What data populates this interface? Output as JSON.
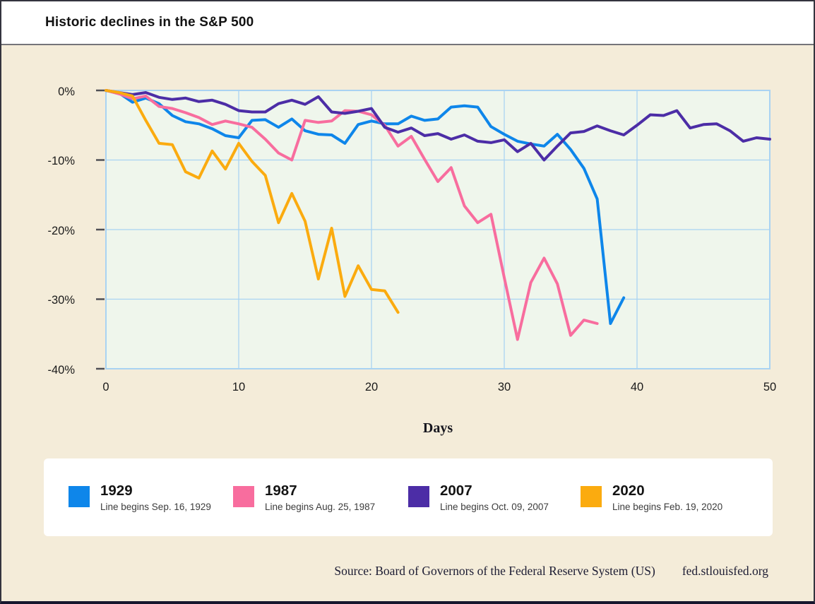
{
  "header": {
    "title": "Historic declines in the S&P 500"
  },
  "footer": {
    "source": "Source: Board of Governors of the Federal Reserve System (US)",
    "site": "fed.stlouisfed.org"
  },
  "colors": {
    "page_bg": "#f4ecd9",
    "plot_bg": "#eff6ec",
    "grid": "#a9d3f2",
    "tick": "#4f4f55",
    "blue_1929": "#0e86ea",
    "pink_1987": "#f86d9e",
    "purple_2007": "#4c2da6",
    "orange_2020": "#fbab0f"
  },
  "chart_data": {
    "type": "line",
    "title": "Historic declines in the S&P 500",
    "xlabel": "Days",
    "ylabel": "",
    "xlim": [
      0,
      50
    ],
    "ylim": [
      -40,
      0
    ],
    "grid": true,
    "legend_position": "bottom",
    "x_ticks": [
      "0",
      "10",
      "20",
      "30",
      "40",
      "50"
    ],
    "y_ticks": [
      "0%",
      "-10%",
      "-20%",
      "-30%",
      "-40%"
    ],
    "x_unit_days": true,
    "series": [
      {
        "name": "1929",
        "subtitle": "Line begins Sep. 16, 1929",
        "color": "#0e86ea",
        "values": [
          0,
          -0.4,
          -1.7,
          -1.1,
          -1.9,
          -3.6,
          -4.5,
          -4.8,
          -5.5,
          -6.5,
          -6.8,
          -4.3,
          -4.2,
          -5.3,
          -4.1,
          -5.8,
          -6.3,
          -6.4,
          -7.6,
          -4.9,
          -4.4,
          -4.8,
          -4.8,
          -3.7,
          -4.3,
          -4.1,
          -2.4,
          -2.2,
          -2.4,
          -5.2,
          -6.3,
          -7.3,
          -7.7,
          -8.0,
          -6.3,
          -8.5,
          -11.2,
          -15.6,
          -33.5,
          -29.8
        ]
      },
      {
        "name": "1987",
        "subtitle": "Line begins Aug. 25, 1987",
        "color": "#f86d9e",
        "values": [
          0,
          -0.5,
          -1.2,
          -0.8,
          -2.3,
          -2.6,
          -3.2,
          -3.9,
          -4.9,
          -4.4,
          -4.8,
          -5.3,
          -7.0,
          -9.0,
          -10.0,
          -4.3,
          -4.6,
          -4.4,
          -2.9,
          -3.0,
          -3.5,
          -5.0,
          -8.0,
          -6.6,
          -9.9,
          -13.1,
          -11.1,
          -16.6,
          -19.0,
          -17.8,
          -26.9,
          -35.8,
          -27.6,
          -24.1,
          -27.8,
          -35.2,
          -33.0,
          -33.5
        ]
      },
      {
        "name": "2007",
        "subtitle": "Line begins Oct. 09, 2007",
        "color": "#4c2da6",
        "values": [
          0,
          -0.3,
          -0.6,
          -0.3,
          -1.0,
          -1.3,
          -1.1,
          -1.6,
          -1.4,
          -2.0,
          -2.9,
          -3.1,
          -3.1,
          -1.9,
          -1.4,
          -2.0,
          -0.9,
          -3.1,
          -3.3,
          -3.0,
          -2.6,
          -5.3,
          -6.0,
          -5.4,
          -6.5,
          -6.2,
          -7.0,
          -6.4,
          -7.3,
          -7.5,
          -7.1,
          -8.8,
          -7.6,
          -10.0,
          -8.0,
          -6.1,
          -5.9,
          -5.1,
          -5.8,
          -6.4,
          -5.0,
          -3.5,
          -3.6,
          -2.9,
          -5.4,
          -4.9,
          -4.8,
          -5.8,
          -7.3,
          -6.8,
          -7.0
        ]
      },
      {
        "name": "2020",
        "subtitle": "Line begins Feb. 19, 2020",
        "color": "#fbab0f",
        "values": [
          0,
          -0.3,
          -0.8,
          -4.3,
          -7.6,
          -7.8,
          -11.7,
          -12.6,
          -8.7,
          -11.3,
          -7.6,
          -10.2,
          -12.2,
          -19.0,
          -14.8,
          -18.8,
          -27.1,
          -19.8,
          -29.6,
          -25.2,
          -28.6,
          -28.8,
          -31.9
        ]
      }
    ]
  }
}
